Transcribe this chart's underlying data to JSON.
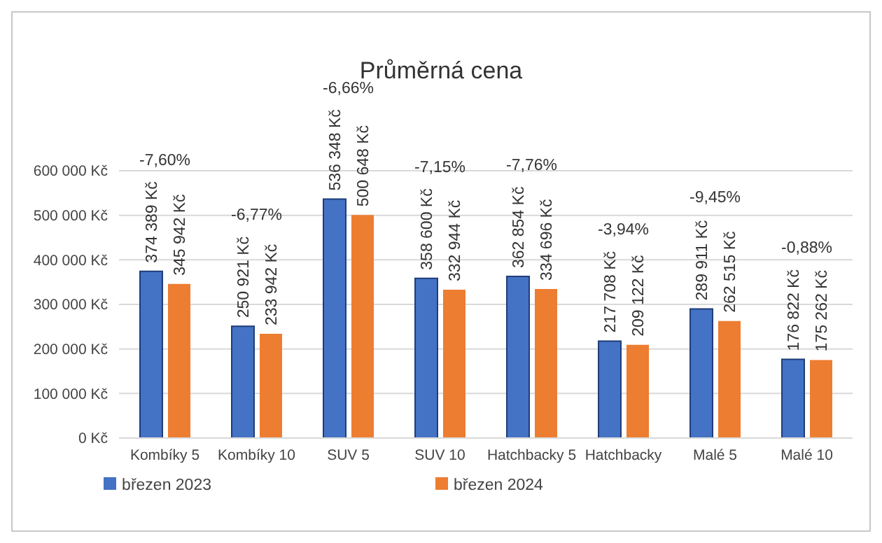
{
  "chart_data": {
    "type": "bar",
    "title": "Průměrná cena",
    "categories": [
      "Kombíky 5",
      "Kombíky 10",
      "SUV 5",
      "SUV 10",
      "Hatchbacky 5",
      "Hatchbacky",
      "Malé 5",
      "Malé 10"
    ],
    "series": [
      {
        "name": "březen 2023",
        "color": "#4472c4",
        "values": [
          374389,
          250921,
          536348,
          358600,
          362854,
          217708,
          289911,
          176822
        ],
        "value_labels": [
          "374 389 Kč",
          "250 921 Kč",
          "536 348 Kč",
          "358 600 Kč",
          "362 854 Kč",
          "217 708 Kč",
          "289 911 Kč",
          "176 822 Kč"
        ]
      },
      {
        "name": "březen 2024",
        "color": "#ed7d31",
        "values": [
          345942,
          233942,
          500648,
          332944,
          334696,
          209122,
          262515,
          175262
        ],
        "value_labels": [
          "345 942 Kč",
          "233 942 Kč",
          "500 648 Kč",
          "332 944 Kč",
          "334 696 Kč",
          "209 122 Kč",
          "262 515 Kč",
          "175 262 Kč"
        ]
      }
    ],
    "ylim": [
      0,
      600000
    ],
    "yticks": [
      {
        "value": 0,
        "label": "0 Kč"
      },
      {
        "value": 100000,
        "label": "100 000 Kč"
      },
      {
        "value": 200000,
        "label": "200 000 Kč"
      },
      {
        "value": 300000,
        "label": "300 000 Kč"
      },
      {
        "value": 400000,
        "label": "400 000 Kč"
      },
      {
        "value": 500000,
        "label": "500 000 Kč"
      },
      {
        "value": 600000,
        "label": "600 000 Kč"
      }
    ],
    "annotations": [
      "-7,60%",
      "-6,77%",
      "-6,66%",
      "-7,15%",
      "-7,76%",
      "-3,94%",
      "-9,45%",
      "-0,88%"
    ],
    "grid": "y",
    "legend": "bottom"
  }
}
